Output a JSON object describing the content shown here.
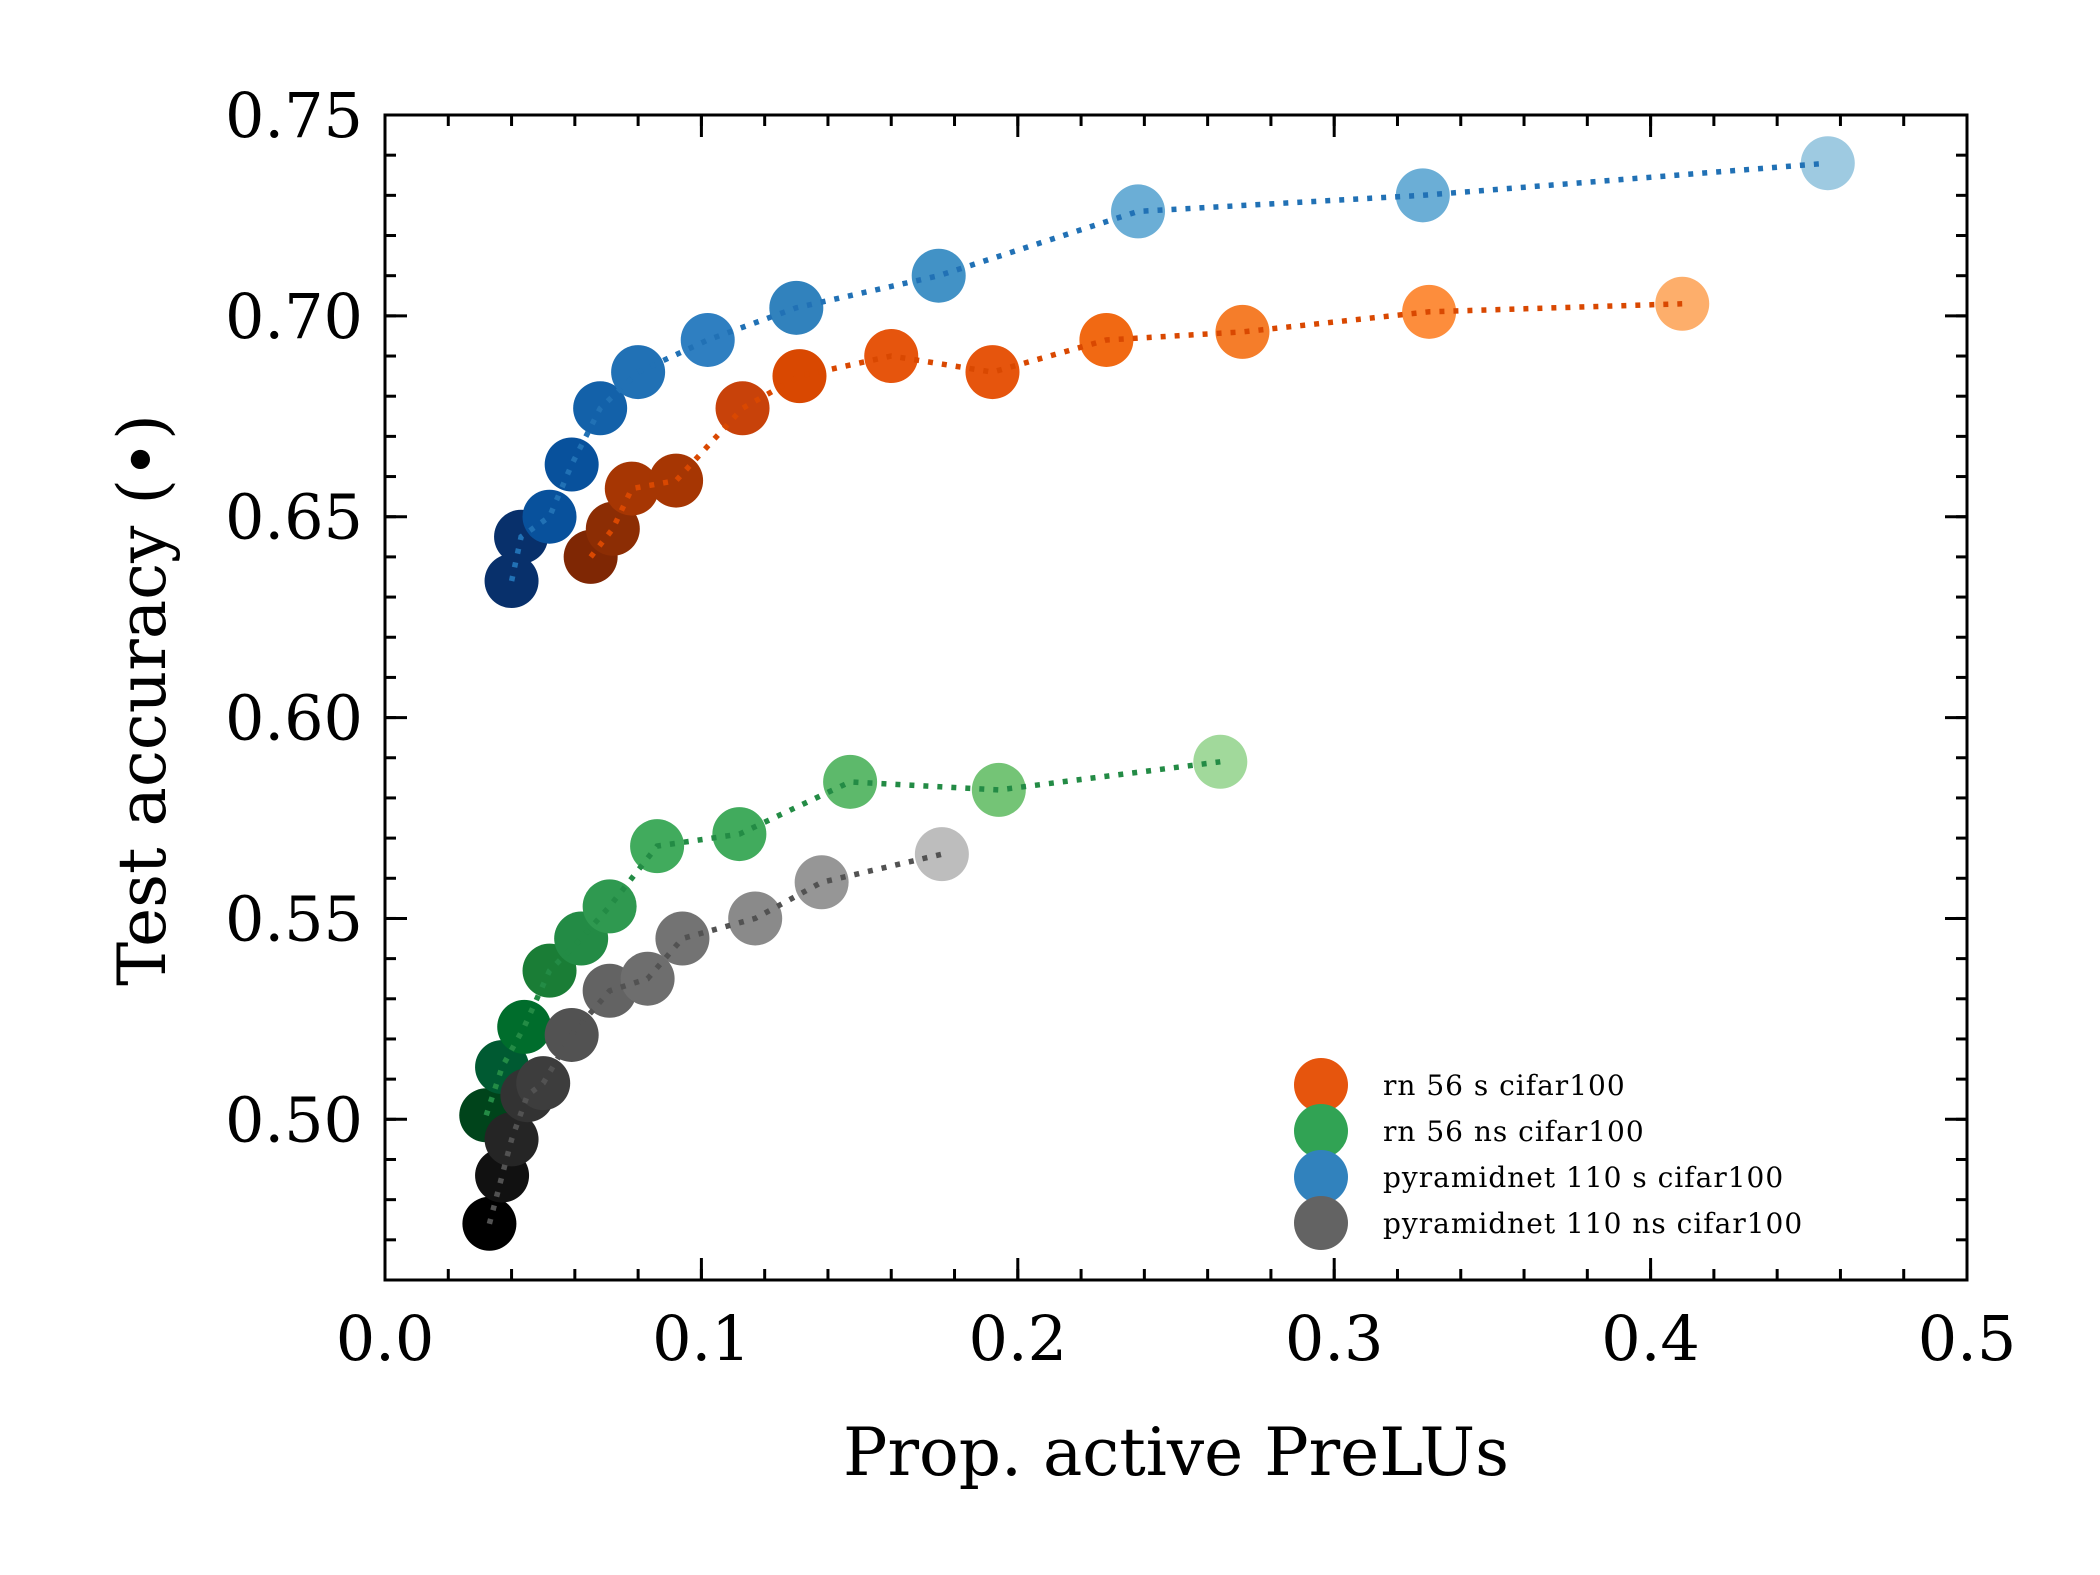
{
  "chart_data": {
    "type": "scatter",
    "title": "",
    "xlabel": "Prop. active PreLUs",
    "ylabel": "Test accuracy (•)",
    "xlim": [
      0.0,
      0.5
    ],
    "ylim": [
      0.46,
      0.75
    ],
    "xticks": [
      0.0,
      0.1,
      0.2,
      0.3,
      0.4,
      0.5
    ],
    "xtick_labels": [
      "0.0",
      "0.1",
      "0.2",
      "0.3",
      "0.4",
      "0.5"
    ],
    "yticks": [
      0.5,
      0.55,
      0.6,
      0.65,
      0.7,
      0.75
    ],
    "ytick_labels": [
      "0.50",
      "0.55",
      "0.60",
      "0.65",
      "0.70",
      "0.75"
    ],
    "legend_position": "bottom-right",
    "series": [
      {
        "name": "rn 56 s cifar100",
        "legend_color": "#e6550d",
        "line_color": "#d94801",
        "x": [
          0.065,
          0.072,
          0.078,
          0.092,
          0.113,
          0.131,
          0.16,
          0.192,
          0.228,
          0.271,
          0.33,
          0.41
        ],
        "y": [
          0.64,
          0.647,
          0.657,
          0.659,
          0.677,
          0.685,
          0.69,
          0.686,
          0.694,
          0.696,
          0.701,
          0.703
        ],
        "point_colors": [
          "#7f2704",
          "#8c2d04",
          "#a63603",
          "#a63603",
          "#c8420a",
          "#d94801",
          "#e6550d",
          "#e6550d",
          "#f16913",
          "#f57d2a",
          "#fd8d3c",
          "#fdae6b"
        ]
      },
      {
        "name": "rn 56 ns cifar100",
        "legend_color": "#31a354",
        "line_color": "#238b45",
        "x": [
          0.032,
          0.037,
          0.044,
          0.052,
          0.062,
          0.071,
          0.086,
          0.112,
          0.147,
          0.194,
          0.264
        ],
        "y": [
          0.501,
          0.513,
          0.523,
          0.537,
          0.545,
          0.553,
          0.568,
          0.571,
          0.584,
          0.582,
          0.589
        ],
        "point_colors": [
          "#00441b",
          "#005a32",
          "#006d2c",
          "#1a7d36",
          "#238b45",
          "#2f9950",
          "#41ab5d",
          "#41ab5d",
          "#5db96b",
          "#74c476",
          "#a1d99b"
        ]
      },
      {
        "name": "pyramidnet 110 s cifar100",
        "legend_color": "#3182bd",
        "line_color": "#2171b5",
        "x": [
          0.04,
          0.043,
          0.052,
          0.059,
          0.068,
          0.08,
          0.102,
          0.13,
          0.175,
          0.238,
          0.328,
          0.456
        ],
        "y": [
          0.634,
          0.645,
          0.65,
          0.663,
          0.677,
          0.686,
          0.694,
          0.702,
          0.71,
          0.726,
          0.73,
          0.738
        ],
        "point_colors": [
          "#08306b",
          "#08306b",
          "#08519c",
          "#08519c",
          "#1361a9",
          "#2171b5",
          "#2f7fc1",
          "#3182bd",
          "#4292c6",
          "#6baed6",
          "#6baed6",
          "#9ecae1"
        ]
      },
      {
        "name": "pyramidnet 110 ns cifar100",
        "legend_color": "#636363",
        "line_color": "#525252",
        "x": [
          0.033,
          0.037,
          0.04,
          0.045,
          0.05,
          0.059,
          0.071,
          0.083,
          0.094,
          0.117,
          0.138,
          0.176
        ],
        "y": [
          0.474,
          0.486,
          0.495,
          0.506,
          0.509,
          0.521,
          0.532,
          0.535,
          0.545,
          0.55,
          0.559,
          0.566
        ],
        "point_colors": [
          "#000000",
          "#111111",
          "#252525",
          "#333333",
          "#3d3d3d",
          "#525252",
          "#636363",
          "#6e6e6e",
          "#737373",
          "#8a8a8a",
          "#969696",
          "#bdbdbd"
        ]
      }
    ]
  }
}
